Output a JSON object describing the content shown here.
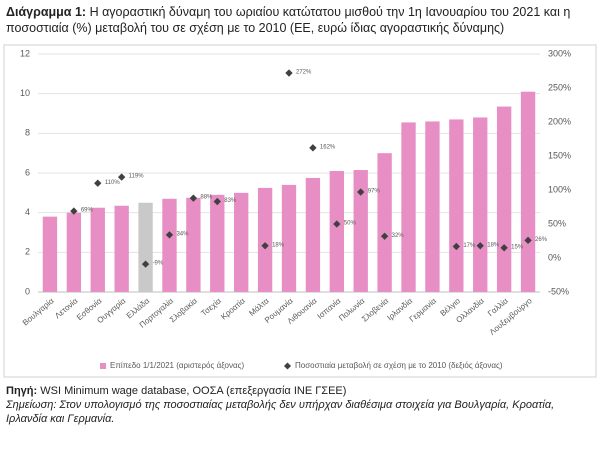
{
  "chart_data": {
    "type": "bar_dot",
    "title_label": "Διάγραμμα 1:",
    "title": "Η αγοραστική δύναμη του ωριαίου κατώτατου μισθού την 1η Ιανουαρίου του 2021 και η ποσοστιαία (%) μεταβολή του σε σχέση με το 2010 (ΕΕ, ευρώ ίδιας αγοραστικής δύναμης)",
    "categories": [
      "Βουλγαρία",
      "Λετονία",
      "Εσθονία",
      "Ουγγαρία",
      "Ελλάδα",
      "Πορτογαλία",
      "Σλοβακία",
      "Τσεχία",
      "Κροατία",
      "Μάλτα",
      "Ρουμανία",
      "Λιθουανία",
      "Ισπανία",
      "Πολωνία",
      "Σλοβενία",
      "Ιρλανδία",
      "Γερμανία",
      "Βέλγιο",
      "Ολλανδία",
      "Γαλλία",
      "Λουξεμβούργο"
    ],
    "series": [
      {
        "name": "Επίπεδο 1/1/2021 (αριστερός άξονας)",
        "color": "#e78ec4",
        "colors": [
          "#e78ec4",
          "#e78ec4",
          "#e78ec4",
          "#e78ec4",
          "#c9c9c9",
          "#e78ec4",
          "#e78ec4",
          "#e78ec4",
          "#e78ec4",
          "#e78ec4",
          "#e78ec4",
          "#e78ec4",
          "#e78ec4",
          "#e78ec4",
          "#e78ec4",
          "#e78ec4",
          "#e78ec4",
          "#e78ec4",
          "#e78ec4",
          "#e78ec4",
          "#e78ec4"
        ],
        "values": [
          3.8,
          4.0,
          4.25,
          4.35,
          4.5,
          4.7,
          4.75,
          4.9,
          5.0,
          5.25,
          5.4,
          5.75,
          6.1,
          6.15,
          7.0,
          8.55,
          8.6,
          8.7,
          8.8,
          9.35,
          10.1
        ]
      },
      {
        "name": "Ποσοστιαία μεταβολή σε σχέση με το 2010 (δεξιός άξονας)",
        "color": "#404040",
        "axis": "y2",
        "values": [
          null,
          69,
          110,
          119,
          -9,
          34,
          88,
          83,
          null,
          18,
          272,
          162,
          50,
          97,
          32,
          null,
          null,
          17,
          18,
          15,
          26
        ],
        "value_labels": [
          null,
          "69%",
          "110%",
          "119%",
          "-9%",
          "34%",
          "88%",
          "83%",
          null,
          "18%",
          "272%",
          "162%",
          "50%",
          "97%",
          "32%",
          null,
          null,
          "17%",
          "18%",
          "15%",
          "26%"
        ]
      }
    ],
    "ylim": [
      0,
      12
    ],
    "yticks": [
      0,
      2,
      4,
      6,
      8,
      10,
      12
    ],
    "y2lim": [
      -50,
      300
    ],
    "y2ticks": [
      {
        "value": -50,
        "label": "-50%"
      },
      {
        "value": 0,
        "label": "0%"
      },
      {
        "value": 50,
        "label": "50%"
      },
      {
        "value": 100,
        "label": "100%"
      },
      {
        "value": 150,
        "label": "150%"
      },
      {
        "value": 200,
        "label": "200%"
      },
      {
        "value": 250,
        "label": "250%"
      },
      {
        "value": 300,
        "label": "300%"
      }
    ],
    "grid": true,
    "legend": "bottom",
    "source_label": "Πηγή:",
    "source": "WSI Minimum wage database, ΟΟΣΑ (επεξεργασία ΙΝΕ ΓΣΕΕ)",
    "note": "Σημείωση: Στον υπολογισμό της ποσοστιαίας μεταβολής δεν υπήρχαν διαθέσιμα στοιχεία για Βουλγαρία, Κροατία, Ιρλανδία και Γερμανία."
  }
}
